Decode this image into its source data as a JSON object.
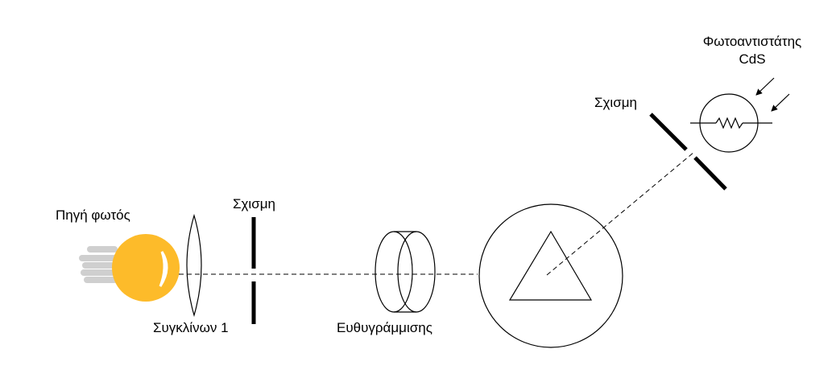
{
  "labels": {
    "light_source": "Πηγή φωτός",
    "slit_left": "Σχισμη",
    "converging_lens": "Συγκλίνων 1",
    "collimator": "Ευθυγράμμισης",
    "slit_right": "Σχισμη",
    "photoresistor_line1": "Φωτοαντιστάτης",
    "photoresistor_line2": "CdS"
  },
  "colors": {
    "bulb": "#FDBB2A",
    "bulb_base": "#CFCFCF",
    "stroke": "#000000"
  }
}
